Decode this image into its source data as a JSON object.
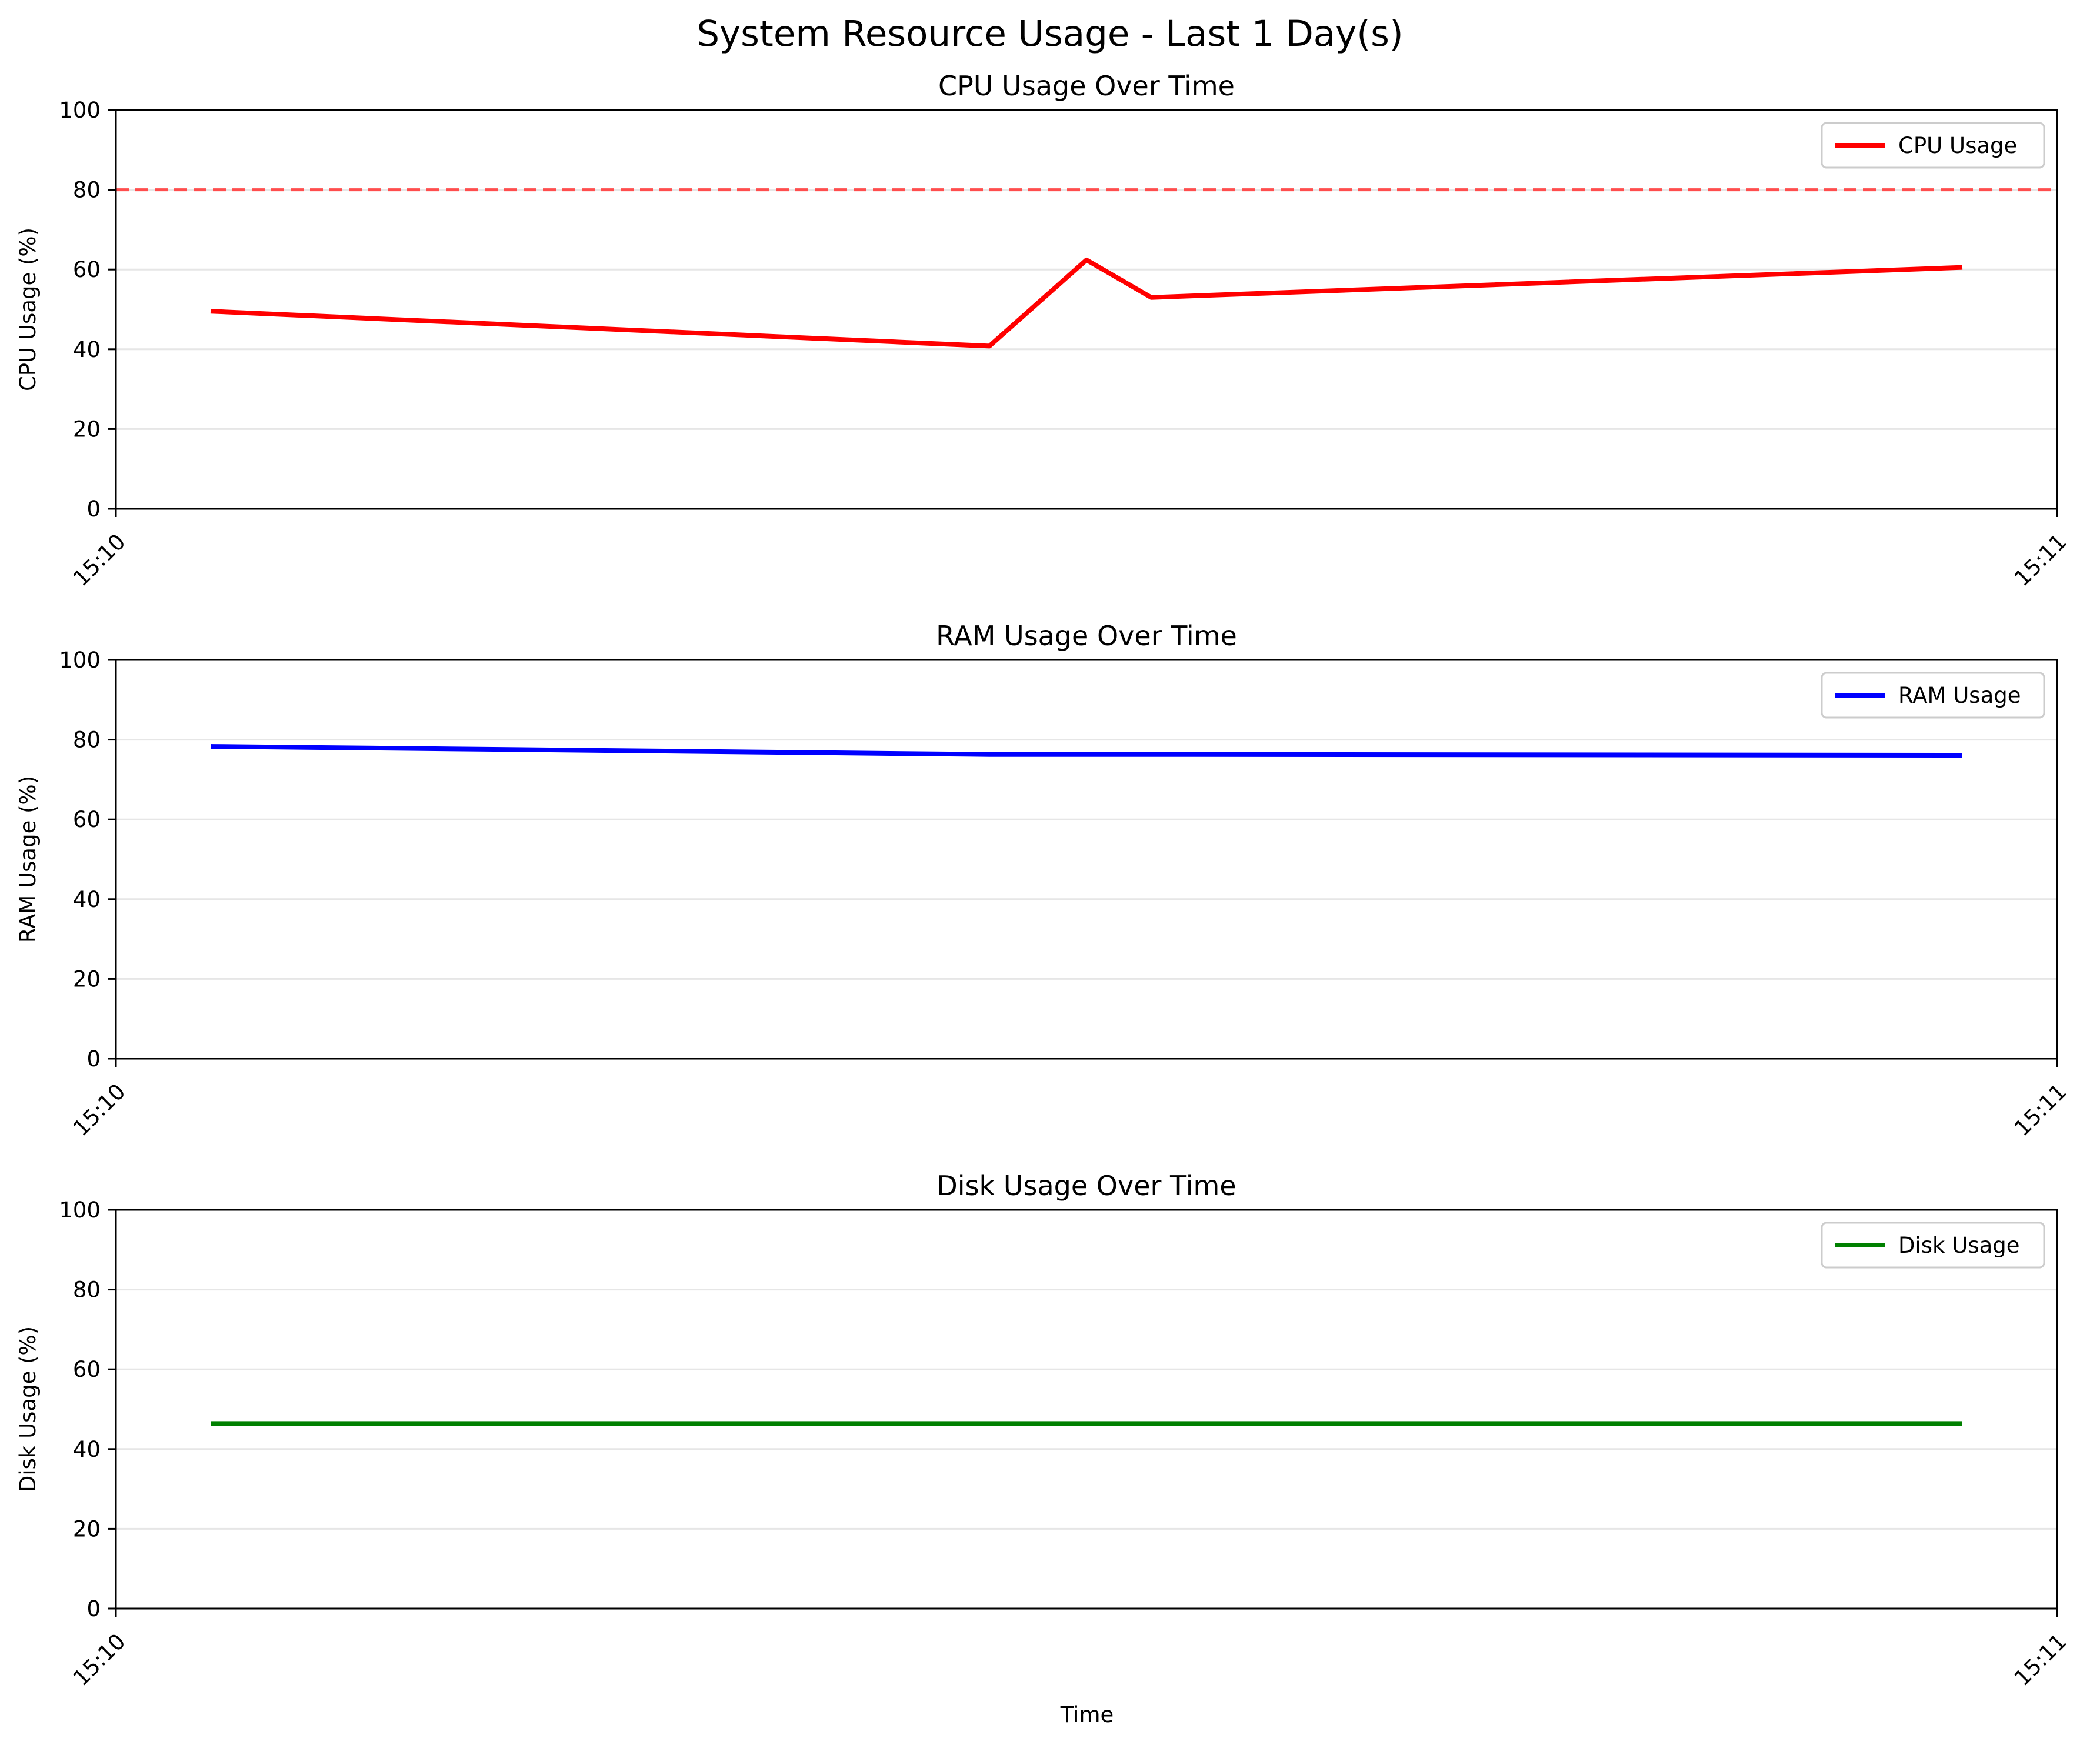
{
  "chart_data": {
    "title": "System Resource Usage - Last 1 Day(s)",
    "xlabel": "Time",
    "type": "line",
    "x_ticks": [
      "15:10",
      "15:11"
    ],
    "x": [
      "15:10:03",
      "15:10:27",
      "15:10:30",
      "15:10:32",
      "15:10:57"
    ],
    "panels": [
      {
        "key": "cpu",
        "title": "CPU Usage Over Time",
        "ylabel": "CPU Usage (%)",
        "ylim": [
          0,
          100
        ],
        "yticks": [
          0,
          20,
          40,
          60,
          80,
          100
        ],
        "grid": "y",
        "legend": "top-right",
        "color": "#ff0000",
        "series": [
          {
            "name": "CPU Usage",
            "values": [
              49.5,
              40.8,
              62.4,
              53.0,
              60.5
            ]
          }
        ],
        "threshold": {
          "value": 80,
          "color": "#ff4d4d",
          "style": "dashed"
        }
      },
      {
        "key": "ram",
        "title": "RAM Usage Over Time",
        "ylabel": "RAM Usage (%)",
        "ylim": [
          0,
          100
        ],
        "yticks": [
          0,
          20,
          40,
          60,
          80,
          100
        ],
        "grid": "y",
        "legend": "top-right",
        "color": "#0000ff",
        "series": [
          {
            "name": "RAM Usage",
            "values": [
              78.3,
              76.3,
              76.3,
              76.3,
              76.1
            ]
          }
        ]
      },
      {
        "key": "disk",
        "title": "Disk Usage Over Time",
        "ylabel": "Disk Usage (%)",
        "ylim": [
          0,
          100
        ],
        "yticks": [
          0,
          20,
          40,
          60,
          80,
          100
        ],
        "grid": "y",
        "legend": "top-right",
        "color": "#008000",
        "series": [
          {
            "name": "Disk Usage",
            "values": [
              46.4,
              46.4,
              46.4,
              46.4,
              46.4
            ]
          }
        ]
      }
    ]
  }
}
